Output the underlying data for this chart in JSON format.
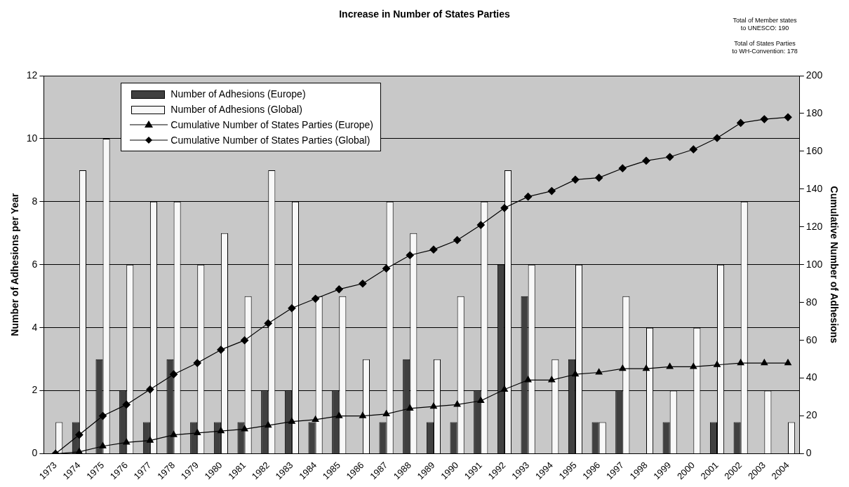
{
  "chart_data": {
    "type": "bar",
    "title": "Increase in Number of States Parties",
    "annotations": [
      "Total of Member states\nto UNESCO: 190",
      "Total of States Parties\nto WH-Convention: 178"
    ],
    "ylabel": "Number of Adhesions per Year",
    "y2label": "Cumulative Number of Adhesions",
    "categories": [
      "1973",
      "1974",
      "1975",
      "1976",
      "1977",
      "1978",
      "1979",
      "1980",
      "1981",
      "1982",
      "1983",
      "1984",
      "1985",
      "1986",
      "1987",
      "1988",
      "1989",
      "1990",
      "1991",
      "1992",
      "1993",
      "1994",
      "1995",
      "1996",
      "1997",
      "1998",
      "1999",
      "2000",
      "2001",
      "2002",
      "2003",
      "2004"
    ],
    "series": [
      {
        "name": "Number of Adhesions (Europe)",
        "color": "#404040",
        "values": [
          0,
          1,
          3,
          2,
          1,
          3,
          1,
          1,
          1,
          2,
          2,
          1,
          2,
          0,
          1,
          3,
          1,
          1,
          2,
          6,
          5,
          0,
          3,
          1,
          2,
          0,
          1,
          0,
          1,
          1,
          0,
          0
        ]
      },
      {
        "name": "Number of Adhesions (Global)",
        "color": "#f8f8f8",
        "values": [
          1,
          9,
          10,
          6,
          8,
          8,
          6,
          7,
          5,
          9,
          8,
          5,
          5,
          3,
          8,
          7,
          3,
          5,
          8,
          9,
          6,
          3,
          6,
          1,
          5,
          4,
          2,
          4,
          6,
          8,
          2,
          1
        ]
      },
      {
        "name": "Cumulative Number of States Parties (Europe)",
        "type": "line",
        "axis": "y2",
        "marker": "triangle",
        "color": "#000000",
        "values": [
          0,
          1,
          4,
          6,
          7,
          10,
          11,
          12,
          13,
          15,
          17,
          18,
          20,
          20,
          21,
          24,
          25,
          26,
          28,
          34,
          39,
          39,
          42,
          43,
          45,
          45,
          46,
          46,
          47,
          48,
          48,
          48
        ]
      },
      {
        "name": "Cumulative Number of States Parties (Global)",
        "type": "line",
        "axis": "y2",
        "marker": "diamond",
        "color": "#000000",
        "values": [
          0,
          10,
          20,
          26,
          34,
          42,
          48,
          55,
          60,
          69,
          77,
          82,
          87,
          90,
          98,
          105,
          108,
          113,
          121,
          130,
          136,
          139,
          145,
          146,
          151,
          155,
          157,
          161,
          167,
          175,
          177,
          178
        ]
      }
    ],
    "ylim": [
      0,
      12
    ],
    "yticks": [
      0,
      2,
      4,
      6,
      8,
      10,
      12
    ],
    "y2lim": [
      0,
      200
    ],
    "y2ticks": [
      0,
      20,
      40,
      60,
      80,
      100,
      120,
      140,
      160,
      180,
      200
    ],
    "grid": "y",
    "legend": "top left"
  }
}
